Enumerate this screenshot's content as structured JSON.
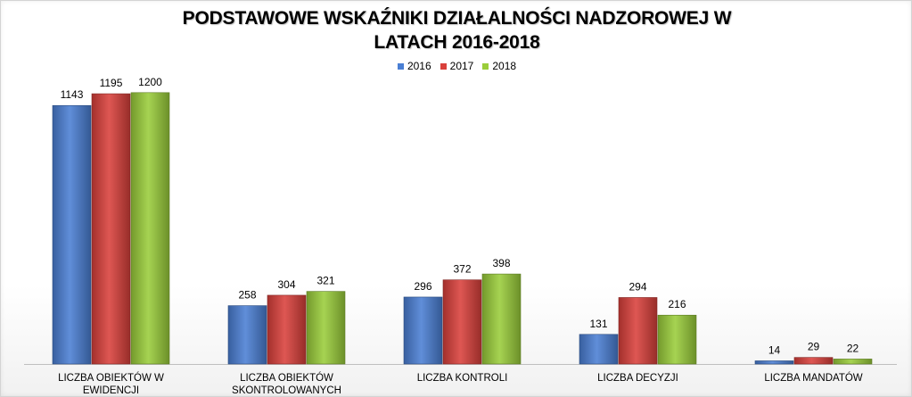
{
  "chart_data": {
    "type": "bar",
    "title": [
      "PODSTAWOWE WSKAŹNIKI DZIAŁALNOŚCI NADZOROWEJ W",
      "LATACH 2016-2018"
    ],
    "categories": [
      [
        "LICZBA OBIEKTÓW W",
        "EWIDENCJI"
      ],
      [
        "LICZBA OBIEKTÓW",
        "SKONTROLOWANYCH"
      ],
      [
        "LICZBA KONTROLI"
      ],
      [
        "LICZBA DECYZJI"
      ],
      [
        "LICZBA MANDATÓW"
      ]
    ],
    "series": [
      {
        "name": "2016",
        "color": "#4a7fd4",
        "values": [
          1143,
          258,
          296,
          131,
          14
        ]
      },
      {
        "name": "2017",
        "color": "#d9403b",
        "values": [
          1195,
          304,
          372,
          294,
          29
        ]
      },
      {
        "name": "2018",
        "color": "#9acd3a",
        "values": [
          1200,
          321,
          398,
          216,
          22
        ]
      }
    ],
    "xlabel": "",
    "ylabel": "",
    "ylim": [
      0,
      1400
    ],
    "grid": false,
    "legend_position": "top"
  }
}
